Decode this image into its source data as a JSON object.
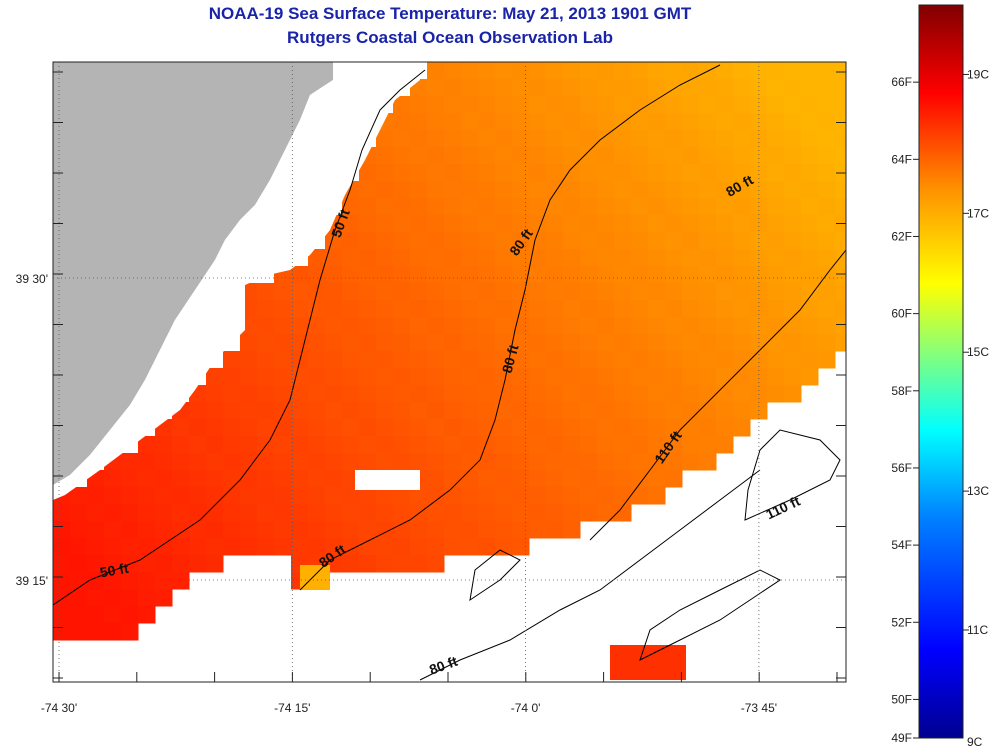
{
  "title": {
    "line1": "NOAA-19 Sea Surface Temperature:  May 21, 2013 1901 GMT",
    "line2": "Rutgers Coastal Ocean Observation Lab"
  },
  "map": {
    "lon_ticks": [
      {
        "value": -74.5,
        "label": "-74 30'"
      },
      {
        "value": -74.25,
        "label": "-74 15'"
      },
      {
        "value": -74.0,
        "label": "-74 0'"
      },
      {
        "value": -73.75,
        "label": "-73 45'"
      }
    ],
    "lat_ticks": [
      {
        "value": 39.5,
        "label": "39 30'"
      },
      {
        "value": 39.25,
        "label": "39 15'"
      }
    ],
    "depth_labels": [
      "50 ft",
      "50 ft",
      "80 ft",
      "80 ft",
      "80 ft",
      "80 ft",
      "80 ft",
      "110 ft",
      "110 ft"
    ],
    "colors": {
      "land": "#b4b4b4",
      "no_data": "#ffffff",
      "contour": "#000000"
    }
  },
  "colorbar": {
    "min_f": 49,
    "max_f": 68,
    "f_labels": [
      "66F",
      "64F",
      "62F",
      "60F",
      "58F",
      "56F",
      "54F",
      "52F",
      "50F",
      "49F"
    ],
    "c_labels": [
      "19C",
      "17C",
      "15C",
      "13C",
      "11C",
      "9C"
    ],
    "colormap": [
      "#00008f",
      "#0000ff",
      "#0080ff",
      "#00ffff",
      "#80ff80",
      "#ffff00",
      "#ff8000",
      "#ff0000",
      "#800000"
    ]
  }
}
